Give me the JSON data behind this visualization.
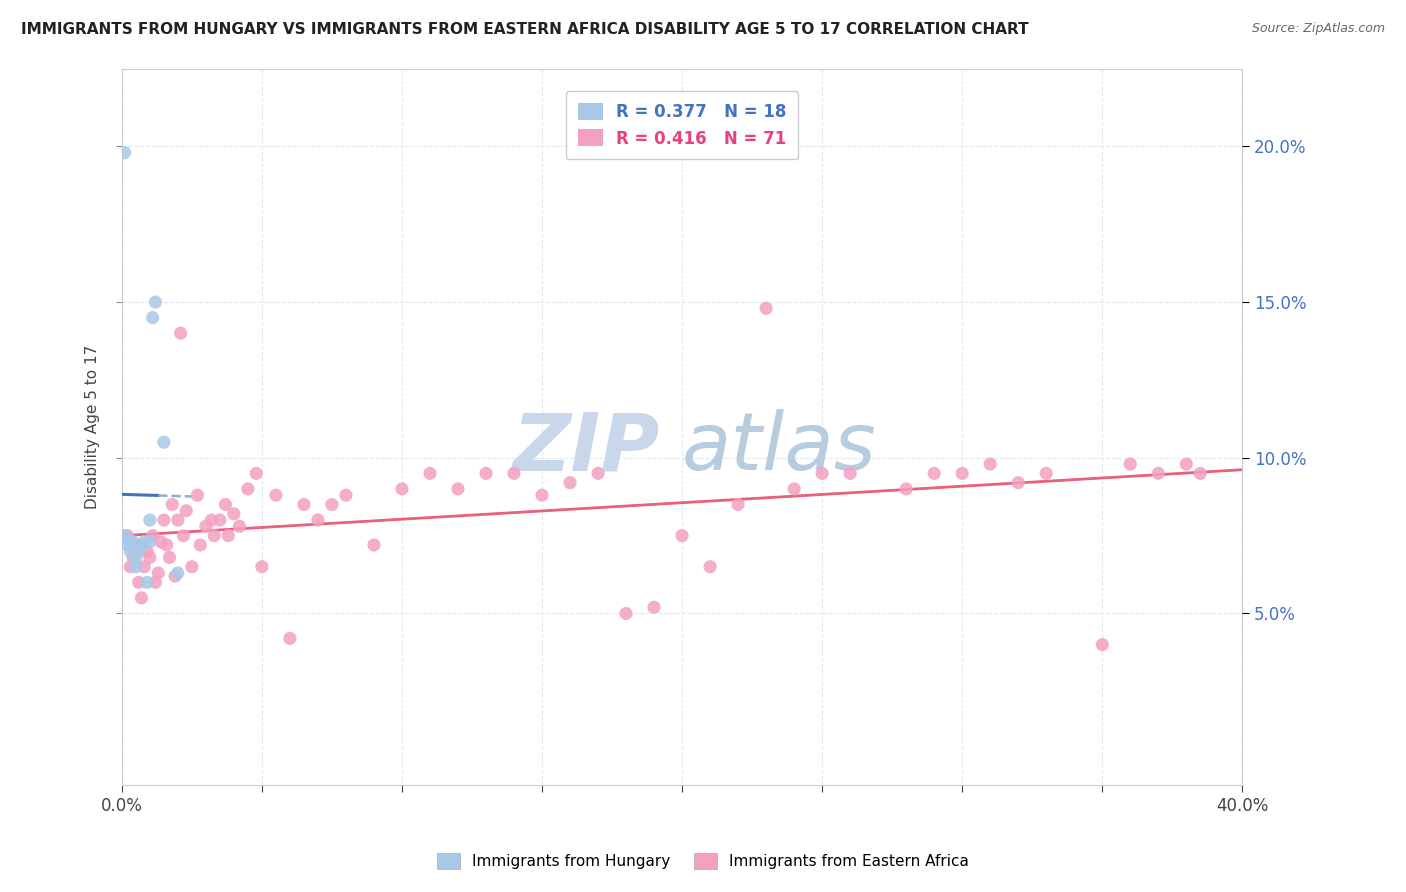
{
  "title": "IMMIGRANTS FROM HUNGARY VS IMMIGRANTS FROM EASTERN AFRICA DISABILITY AGE 5 TO 17 CORRELATION CHART",
  "source": "Source: ZipAtlas.com",
  "ylabel": "Disability Age 5 to 17",
  "legend_hungary": "Immigrants from Hungary",
  "legend_eastern_africa": "Immigrants from Eastern Africa",
  "r_hungary": "R = 0.377",
  "n_hungary": "N = 18",
  "r_eastern_africa": "R = 0.416",
  "n_eastern_africa": "N = 71",
  "color_hungary": "#a8c8e8",
  "color_eastern_africa": "#f4a0c0",
  "color_hungary_line": "#4472c4",
  "color_eastern_africa_line": "#e8607a",
  "color_hungary_line_dash": "#8ab0d0",
  "watermark_color": "#c8d8e8",
  "xlim": [
    0.0,
    0.4
  ],
  "ylim": [
    -0.005,
    0.225
  ],
  "yticks_right": [
    0.05,
    0.1,
    0.15,
    0.2
  ],
  "background_color": "#ffffff",
  "grid_color": "#e0e8f0",
  "hungary_x": [
    0.001,
    0.001,
    0.002,
    0.003,
    0.003,
    0.004,
    0.005,
    0.005,
    0.006,
    0.007,
    0.008,
    0.009,
    0.01,
    0.01,
    0.011,
    0.012,
    0.015,
    0.02
  ],
  "hungary_y": [
    0.198,
    0.075,
    0.072,
    0.073,
    0.07,
    0.073,
    0.065,
    0.068,
    0.07,
    0.072,
    0.073,
    0.06,
    0.073,
    0.08,
    0.145,
    0.15,
    0.105,
    0.063
  ],
  "eastern_africa_x": [
    0.002,
    0.003,
    0.004,
    0.005,
    0.006,
    0.007,
    0.008,
    0.009,
    0.01,
    0.011,
    0.012,
    0.013,
    0.014,
    0.015,
    0.016,
    0.017,
    0.018,
    0.019,
    0.02,
    0.021,
    0.022,
    0.023,
    0.025,
    0.027,
    0.028,
    0.03,
    0.032,
    0.033,
    0.035,
    0.037,
    0.038,
    0.04,
    0.042,
    0.045,
    0.048,
    0.05,
    0.055,
    0.06,
    0.065,
    0.07,
    0.075,
    0.08,
    0.09,
    0.1,
    0.11,
    0.12,
    0.13,
    0.14,
    0.15,
    0.16,
    0.17,
    0.18,
    0.19,
    0.2,
    0.21,
    0.22,
    0.23,
    0.24,
    0.25,
    0.26,
    0.28,
    0.29,
    0.3,
    0.31,
    0.32,
    0.33,
    0.35,
    0.36,
    0.37,
    0.38,
    0.385
  ],
  "eastern_africa_y": [
    0.075,
    0.065,
    0.068,
    0.072,
    0.06,
    0.055,
    0.065,
    0.07,
    0.068,
    0.075,
    0.06,
    0.063,
    0.073,
    0.08,
    0.072,
    0.068,
    0.085,
    0.062,
    0.08,
    0.14,
    0.075,
    0.083,
    0.065,
    0.088,
    0.072,
    0.078,
    0.08,
    0.075,
    0.08,
    0.085,
    0.075,
    0.082,
    0.078,
    0.09,
    0.095,
    0.065,
    0.088,
    0.042,
    0.085,
    0.08,
    0.085,
    0.088,
    0.072,
    0.09,
    0.095,
    0.09,
    0.095,
    0.095,
    0.088,
    0.092,
    0.095,
    0.05,
    0.052,
    0.075,
    0.065,
    0.085,
    0.148,
    0.09,
    0.095,
    0.095,
    0.09,
    0.095,
    0.095,
    0.098,
    0.092,
    0.095,
    0.04,
    0.098,
    0.095,
    0.098,
    0.095
  ]
}
